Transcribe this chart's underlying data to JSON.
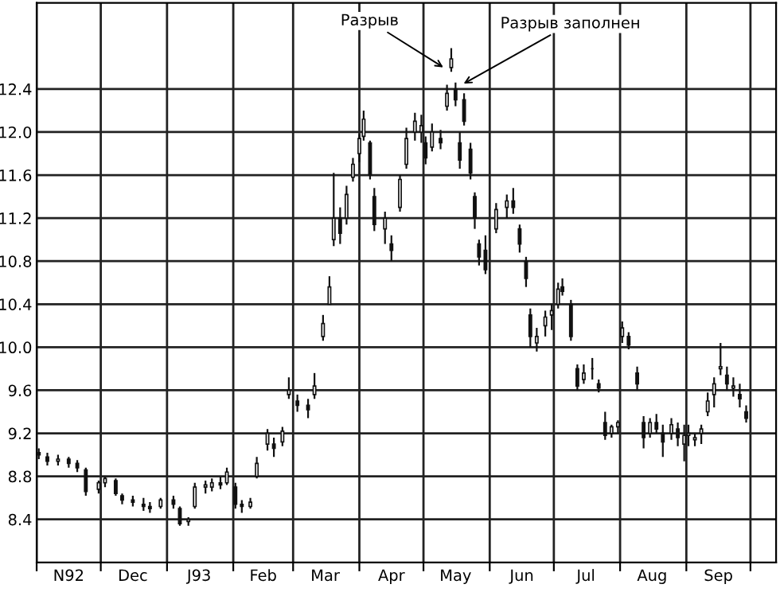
{
  "chart_data": {
    "type": "candlestick",
    "x": [
      "1992-11-02",
      "1992-11-06",
      "1992-11-11",
      "1992-11-16",
      "1992-11-20",
      "1992-11-24",
      "1992-11-30",
      "1992-12-03",
      "1992-12-08",
      "1992-12-11",
      "1992-12-16",
      "1992-12-21",
      "1992-12-24",
      "1992-12-29",
      "1993-01-04",
      "1993-01-07",
      "1993-01-11",
      "1993-01-14",
      "1993-01-19",
      "1993-01-22",
      "1993-01-26",
      "1993-01-29",
      "1993-02-02",
      "1993-02-05",
      "1993-02-09",
      "1993-02-12",
      "1993-02-17",
      "1993-02-20",
      "1993-02-24",
      "1993-02-27",
      "1993-03-03",
      "1993-03-08",
      "1993-03-11",
      "1993-03-15",
      "1993-03-18",
      "1993-03-20",
      "1993-03-23",
      "1993-03-26",
      "1993-03-29",
      "1993-04-01",
      "1993-04-03",
      "1993-04-06",
      "1993-04-08",
      "1993-04-13",
      "1993-04-16",
      "1993-04-20",
      "1993-04-23",
      "1993-04-27",
      "1993-04-30",
      "1993-05-02",
      "1993-05-05",
      "1993-05-09",
      "1993-05-12",
      "1993-05-14",
      "1993-05-16",
      "1993-05-18",
      "1993-05-20",
      "1993-05-23",
      "1993-05-25",
      "1993-05-27",
      "1993-05-30",
      "1993-06-04",
      "1993-06-09",
      "1993-06-12",
      "1993-06-15",
      "1993-06-18",
      "1993-06-20",
      "1993-06-23",
      "1993-06-27",
      "1993-06-30",
      "1993-07-03",
      "1993-07-05",
      "1993-07-09",
      "1993-07-12",
      "1993-07-15",
      "1993-07-19",
      "1993-07-22",
      "1993-07-25",
      "1993-07-28",
      "1993-07-31",
      "1993-08-02",
      "1993-08-05",
      "1993-08-09",
      "1993-08-12",
      "1993-08-15",
      "1993-08-18",
      "1993-08-21",
      "1993-08-25",
      "1993-08-28",
      "1993-08-31",
      "1993-09-02",
      "1993-09-05",
      "1993-09-08",
      "1993-09-11",
      "1993-09-14",
      "1993-09-17",
      "1993-09-20",
      "1993-09-23",
      "1993-09-26",
      "1993-09-29"
    ],
    "ohlc": [
      [
        9.02,
        9.06,
        8.96,
        9.0
      ],
      [
        8.98,
        9.02,
        8.9,
        8.94
      ],
      [
        8.94,
        9.0,
        8.9,
        8.96
      ],
      [
        8.96,
        8.98,
        8.88,
        8.92
      ],
      [
        8.92,
        8.95,
        8.84,
        8.88
      ],
      [
        8.86,
        8.88,
        8.62,
        8.66
      ],
      [
        8.68,
        8.76,
        8.64,
        8.74
      ],
      [
        8.74,
        8.8,
        8.7,
        8.78
      ],
      [
        8.76,
        8.78,
        8.62,
        8.64
      ],
      [
        8.62,
        8.64,
        8.54,
        8.58
      ],
      [
        8.58,
        8.62,
        8.52,
        8.56
      ],
      [
        8.54,
        8.6,
        8.48,
        8.52
      ],
      [
        8.52,
        8.56,
        8.46,
        8.5
      ],
      [
        8.52,
        8.6,
        8.5,
        8.58
      ],
      [
        8.58,
        8.62,
        8.5,
        8.54
      ],
      [
        8.5,
        8.52,
        8.34,
        8.36
      ],
      [
        8.38,
        8.42,
        8.34,
        8.4
      ],
      [
        8.52,
        8.74,
        8.5,
        8.7
      ],
      [
        8.7,
        8.76,
        8.64,
        8.72
      ],
      [
        8.7,
        8.78,
        8.66,
        8.74
      ],
      [
        8.74,
        8.8,
        8.68,
        8.72
      ],
      [
        8.74,
        8.88,
        8.72,
        8.84
      ],
      [
        8.7,
        8.74,
        8.5,
        8.54
      ],
      [
        8.54,
        8.58,
        8.46,
        8.52
      ],
      [
        8.52,
        8.6,
        8.5,
        8.56
      ],
      [
        8.8,
        8.98,
        8.78,
        8.92
      ],
      [
        9.1,
        9.24,
        9.04,
        9.2
      ],
      [
        9.1,
        9.16,
        8.98,
        9.06
      ],
      [
        9.12,
        9.26,
        9.08,
        9.22
      ],
      [
        9.56,
        9.72,
        9.52,
        9.6
      ],
      [
        9.5,
        9.56,
        9.4,
        9.46
      ],
      [
        9.46,
        9.52,
        9.34,
        9.42
      ],
      [
        9.56,
        9.76,
        9.52,
        9.64
      ],
      [
        10.1,
        10.3,
        10.06,
        10.22
      ],
      [
        10.4,
        10.66,
        10.4,
        10.56
      ],
      [
        11.0,
        11.62,
        10.94,
        11.2
      ],
      [
        11.2,
        11.3,
        10.96,
        11.06
      ],
      [
        11.2,
        11.5,
        11.14,
        11.42
      ],
      [
        11.58,
        11.76,
        11.54,
        11.7
      ],
      [
        11.8,
        11.98,
        11.72,
        11.94
      ],
      [
        11.96,
        12.2,
        11.92,
        12.12
      ],
      [
        11.9,
        11.92,
        11.56,
        11.6
      ],
      [
        11.4,
        11.48,
        11.08,
        11.14
      ],
      [
        11.1,
        11.26,
        10.96,
        11.2
      ],
      [
        10.96,
        11.04,
        10.8,
        10.9
      ],
      [
        11.3,
        11.6,
        11.26,
        11.56
      ],
      [
        11.7,
        12.04,
        11.66,
        11.94
      ],
      [
        12.0,
        12.18,
        11.92,
        12.1
      ],
      [
        12.0,
        12.16,
        11.9,
        12.06
      ],
      [
        11.9,
        11.96,
        11.7,
        11.76
      ],
      [
        11.86,
        12.08,
        11.82,
        12.0
      ],
      [
        11.94,
        12.02,
        11.84,
        11.9
      ],
      [
        12.24,
        12.44,
        12.2,
        12.36
      ],
      [
        12.6,
        12.78,
        12.56,
        12.68
      ],
      [
        12.4,
        12.46,
        12.24,
        12.3
      ],
      [
        11.9,
        12.0,
        11.66,
        11.74
      ],
      [
        12.3,
        12.36,
        12.06,
        12.1
      ],
      [
        11.84,
        11.9,
        11.56,
        11.62
      ],
      [
        11.4,
        11.44,
        11.1,
        11.2
      ],
      [
        10.96,
        11.0,
        10.76,
        10.84
      ],
      [
        10.9,
        11.04,
        10.68,
        10.72
      ],
      [
        11.1,
        11.34,
        11.06,
        11.28
      ],
      [
        11.3,
        11.42,
        11.2,
        11.36
      ],
      [
        11.36,
        11.48,
        11.24,
        11.3
      ],
      [
        11.1,
        11.14,
        10.88,
        10.96
      ],
      [
        10.8,
        10.84,
        10.56,
        10.64
      ],
      [
        10.3,
        10.36,
        10.0,
        10.1
      ],
      [
        10.04,
        10.18,
        9.96,
        10.1
      ],
      [
        10.2,
        10.34,
        10.1,
        10.28
      ],
      [
        10.3,
        10.4,
        10.16,
        10.34
      ],
      [
        10.4,
        10.6,
        10.36,
        10.54
      ],
      [
        10.56,
        10.64,
        10.48,
        10.52
      ],
      [
        10.4,
        10.44,
        10.06,
        10.1
      ],
      [
        9.8,
        9.84,
        9.6,
        9.64
      ],
      [
        9.7,
        9.84,
        9.66,
        9.76
      ],
      [
        9.8,
        9.9,
        9.7,
        9.8
      ],
      [
        9.66,
        9.7,
        9.58,
        9.62
      ],
      [
        9.3,
        9.4,
        9.14,
        9.18
      ],
      [
        9.2,
        9.28,
        9.16,
        9.26
      ],
      [
        9.26,
        9.32,
        9.2,
        9.3
      ],
      [
        10.1,
        10.24,
        10.04,
        10.18
      ],
      [
        10.1,
        10.14,
        9.98,
        10.02
      ],
      [
        9.76,
        9.82,
        9.6,
        9.66
      ],
      [
        9.3,
        9.36,
        9.06,
        9.16
      ],
      [
        9.2,
        9.34,
        9.16,
        9.3
      ],
      [
        9.3,
        9.38,
        9.2,
        9.24
      ],
      [
        9.2,
        9.28,
        8.98,
        9.12
      ],
      [
        9.2,
        9.34,
        9.14,
        9.28
      ],
      [
        9.24,
        9.3,
        9.08,
        9.16
      ],
      [
        9.1,
        9.28,
        8.94,
        9.18
      ],
      [
        9.18,
        9.28,
        9.08,
        9.2
      ],
      [
        9.14,
        9.2,
        9.08,
        9.16
      ],
      [
        9.2,
        9.28,
        9.1,
        9.24
      ],
      [
        9.4,
        9.58,
        9.36,
        9.5
      ],
      [
        9.56,
        9.72,
        9.44,
        9.66
      ],
      [
        9.8,
        10.04,
        9.74,
        9.82
      ],
      [
        9.74,
        9.82,
        9.6,
        9.66
      ],
      [
        9.62,
        9.72,
        9.54,
        9.64
      ],
      [
        9.56,
        9.66,
        9.44,
        9.52
      ],
      [
        9.4,
        9.46,
        9.3,
        9.34
      ]
    ],
    "color": "#111111",
    "xlim": [
      "1992-11-01",
      "1993-10-13"
    ],
    "xticks": [
      {
        "value": "1992-11-01",
        "label": null
      },
      {
        "value": "1992-11-16",
        "label": "N92"
      },
      {
        "value": "1992-12-01",
        "label": null
      },
      {
        "value": "1992-12-16",
        "label": "Dec"
      },
      {
        "value": "1993-01-01",
        "label": null
      },
      {
        "value": "1993-01-16",
        "label": "J93"
      },
      {
        "value": "1993-02-01",
        "label": null
      },
      {
        "value": "1993-02-15",
        "label": "Feb"
      },
      {
        "value": "1993-03-01",
        "label": null
      },
      {
        "value": "1993-03-16",
        "label": "Mar"
      },
      {
        "value": "1993-04-01",
        "label": null
      },
      {
        "value": "1993-04-16",
        "label": "Apr"
      },
      {
        "value": "1993-05-01",
        "label": null
      },
      {
        "value": "1993-05-16",
        "label": "May"
      },
      {
        "value": "1993-06-01",
        "label": null
      },
      {
        "value": "1993-06-16",
        "label": "Jun"
      },
      {
        "value": "1993-07-01",
        "label": null
      },
      {
        "value": "1993-07-16",
        "label": "Jul"
      },
      {
        "value": "1993-08-01",
        "label": null
      },
      {
        "value": "1993-08-16",
        "label": "Aug"
      },
      {
        "value": "1993-09-01",
        "label": null
      },
      {
        "value": "1993-09-16",
        "label": "Sep"
      },
      {
        "value": "1993-10-01",
        "label": null
      }
    ],
    "ylim": [
      8.0,
      13.2
    ],
    "yticks": [
      8.4,
      8.8,
      9.2,
      9.6,
      {
        "value": 10,
        "label": "10.0"
      },
      10.4,
      10.8,
      11.2,
      11.6,
      {
        "value": 12,
        "label": "12.0"
      },
      12.4
    ],
    "grid": true,
    "annotations": [
      {
        "text": "Разрыв",
        "x": "1993-05-12",
        "y": 12.58
      },
      {
        "text": "Разрыв заполнен",
        "x": "1993-05-18",
        "y": 12.43
      }
    ]
  }
}
